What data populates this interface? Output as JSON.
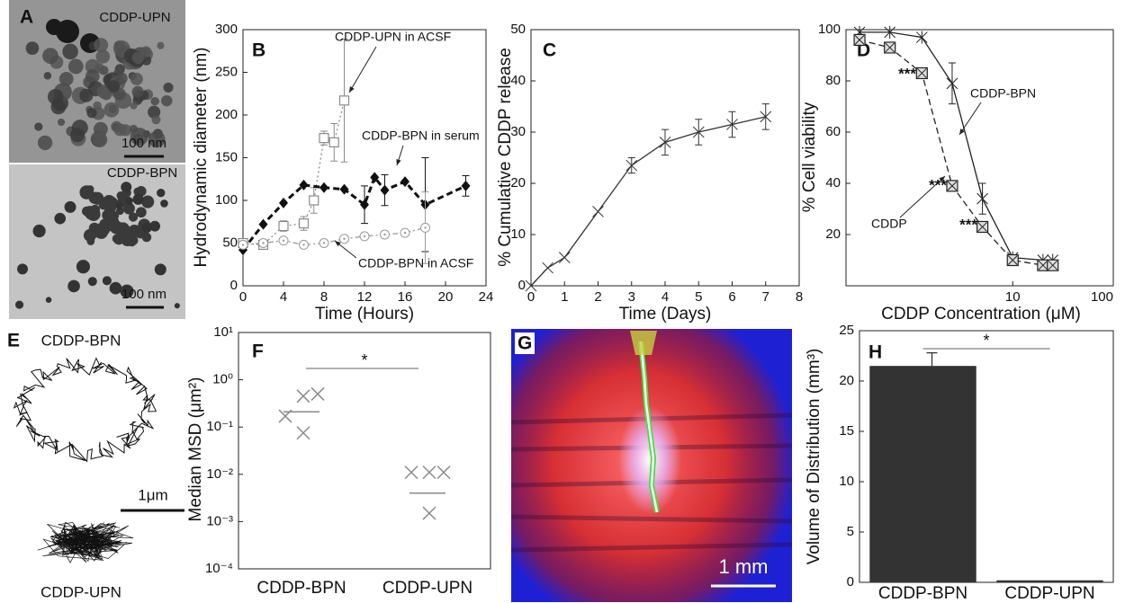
{
  "images": {
    "A": {
      "panel": "A",
      "upper_label": "CDDP-UPN",
      "upper_scale": "100 nm",
      "lower_label": "CDDP-BPN",
      "lower_scale": "100 nm"
    },
    "E": {
      "panel": "E",
      "upper_label": "CDDP-BPN",
      "scale": "1μm",
      "lower_label": "CDDP-UPN"
    },
    "G": {
      "panel": "G",
      "scale": "1 mm"
    }
  },
  "chart_data": [
    {
      "type": "line",
      "panel": "B",
      "xlabel": "Time (Hours)",
      "ylabel": "Hydrodynamic diameter (nm)",
      "xlim": [
        0,
        24
      ],
      "xticks": [
        0,
        4,
        8,
        12,
        16,
        20,
        24
      ],
      "ylim": [
        0,
        300
      ],
      "yticks": [
        0,
        50,
        100,
        150,
        200,
        250,
        300
      ],
      "series": [
        {
          "name": "CDDP-UPN in ACSF",
          "color": "#8a8a8a",
          "marker": "square",
          "dash": "dotted",
          "x": [
            0,
            2,
            4,
            6,
            7,
            8,
            9,
            10
          ],
          "values": [
            50,
            48,
            70,
            73,
            100,
            173,
            168,
            217
          ],
          "errors": [
            null,
            null,
            6,
            8,
            15,
            8,
            22,
            72
          ]
        },
        {
          "name": "CDDP-BPN in serum",
          "color": "#111111",
          "marker": "diamond",
          "dash": "dashed",
          "x": [
            0,
            2,
            4,
            6,
            8,
            10,
            12,
            13,
            14,
            16,
            18,
            22
          ],
          "values": [
            42,
            72,
            97,
            118,
            115,
            113,
            95,
            127,
            112,
            122,
            95,
            117
          ],
          "errors": [
            null,
            null,
            null,
            null,
            null,
            null,
            22,
            null,
            18,
            null,
            55,
            12
          ]
        },
        {
          "name": "CDDP-BPN in ACSF",
          "color": "#999999",
          "marker": "circle",
          "dash": "dashdot",
          "x": [
            0,
            2,
            4,
            6,
            8,
            10,
            12,
            14,
            16,
            18
          ],
          "values": [
            48,
            50,
            53,
            48,
            50,
            55,
            58,
            60,
            62,
            68
          ],
          "errors": [
            null,
            null,
            null,
            null,
            null,
            null,
            null,
            null,
            null,
            42
          ]
        }
      ]
    },
    {
      "type": "line",
      "panel": "C",
      "xlabel": "Time (Days)",
      "ylabel": "% Cumulative CDDP release",
      "xlim": [
        0,
        8
      ],
      "xticks": [
        0,
        1,
        2,
        3,
        4,
        5,
        6,
        7,
        8
      ],
      "ylim": [
        0,
        50
      ],
      "yticks": [
        0,
        10,
        20,
        30,
        40,
        50
      ],
      "series": [
        {
          "color": "#333333",
          "marker": "x",
          "dash": "solid",
          "x": [
            0,
            0.5,
            1,
            2,
            3,
            4,
            5,
            6,
            7
          ],
          "values": [
            0,
            3.5,
            5.5,
            14.5,
            23.5,
            28,
            30,
            31.5,
            33
          ],
          "errors": [
            null,
            null,
            null,
            null,
            1.5,
            2.5,
            2.5,
            2.5,
            2.5
          ]
        }
      ]
    },
    {
      "type": "line",
      "panel": "D",
      "xlabel": "CDDP Concentration (μM)",
      "ylabel": "% Cell viability",
      "xscale": "log",
      "xlim": [
        0.22,
        100
      ],
      "xticks": [
        10,
        100
      ],
      "ylim": [
        0,
        100
      ],
      "yticks": [
        20,
        40,
        60,
        80,
        100
      ],
      "annotations": [
        "***",
        "***",
        "***"
      ],
      "series": [
        {
          "name": "CDDP-BPN",
          "color": "#222222",
          "marker": "star",
          "dash": "solid",
          "x": [
            0.3,
            0.6,
            1.25,
            2.5,
            5,
            10,
            20,
            25
          ],
          "values": [
            99,
            99,
            97,
            79,
            34,
            11,
            10,
            10
          ],
          "errors": [
            null,
            null,
            null,
            8,
            6,
            null,
            null,
            null
          ]
        },
        {
          "name": "CDDP",
          "color": "#222222",
          "marker": "boxx",
          "dash": "dashed",
          "x": [
            0.3,
            0.6,
            1.25,
            2.5,
            5,
            10,
            20,
            25
          ],
          "values": [
            96,
            93,
            83,
            39,
            23,
            10,
            8,
            8
          ],
          "errors": [
            null,
            null,
            null,
            null,
            null,
            null,
            null,
            null
          ]
        }
      ]
    },
    {
      "type": "scatter",
      "panel": "F",
      "ylabel": "Median MSD (μm²)",
      "yscale": "log",
      "significance": "*",
      "ylim": [
        0.0001,
        10
      ],
      "yticks": [
        {
          "value": 10,
          "label": "10¹"
        },
        {
          "value": 1,
          "label": "10⁰"
        },
        {
          "value": 0.1,
          "label": "10⁻¹"
        },
        {
          "value": 0.01,
          "label": "10⁻²"
        },
        {
          "value": 0.001,
          "label": "10⁻³"
        },
        {
          "value": 0.0001,
          "label": "10⁻⁴"
        }
      ],
      "categories": [
        "CDDP-BPN",
        "CDDP-UPN"
      ],
      "color": "#8a8a8a",
      "groups": [
        {
          "values": [
            0.17,
            0.45,
            0.5,
            0.075
          ],
          "median": 0.21
        },
        {
          "values": [
            0.011,
            0.011,
            0.011,
            0.0015
          ],
          "median": 0.004
        }
      ]
    },
    {
      "type": "bar",
      "panel": "H",
      "ylabel": "Volume of Distribution (mm³)",
      "significance": "*",
      "categories": [
        "CDDP-BPN",
        "CDDP-UPN"
      ],
      "values": [
        21.5,
        0.2
      ],
      "errors": [
        1.3,
        null
      ],
      "color": "#333333",
      "ylim": [
        0,
        25
      ],
      "yticks": [
        0,
        5,
        10,
        15,
        20,
        25
      ]
    }
  ]
}
